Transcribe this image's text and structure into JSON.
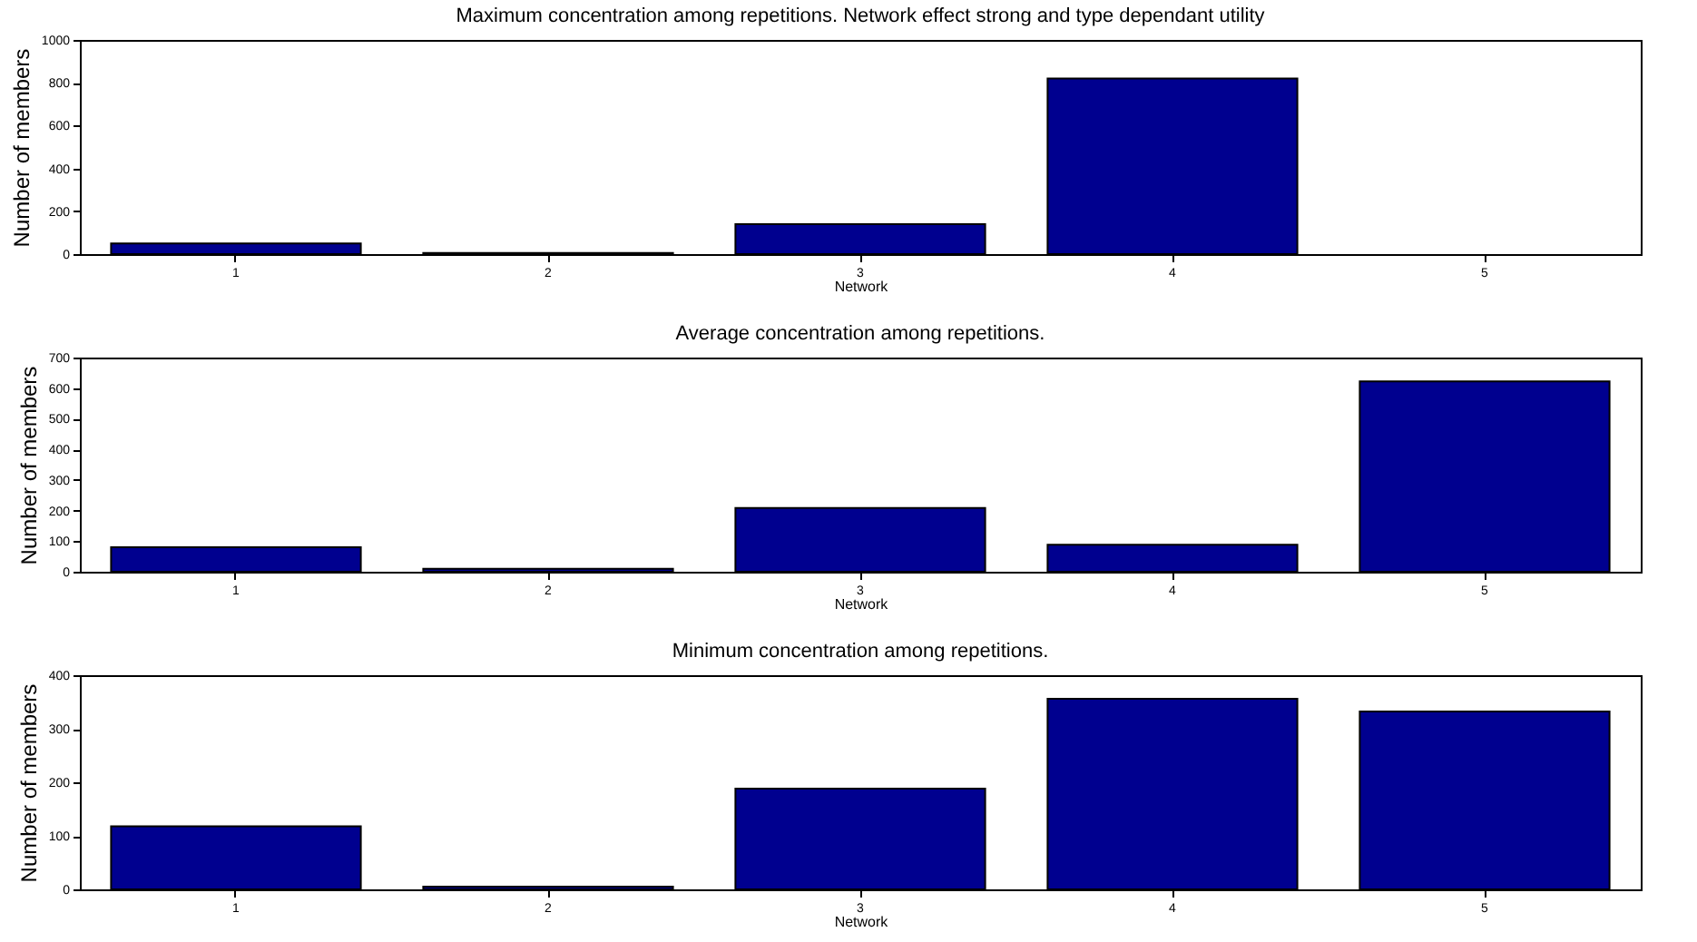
{
  "chart_data": [
    {
      "type": "bar",
      "title": "Maximum concentration among repetitions. Network effect strong and type dependant utility",
      "xlabel": "Network",
      "ylabel": "Number of members",
      "categories": [
        "1",
        "2",
        "3",
        "4",
        "5"
      ],
      "values": [
        50,
        5,
        140,
        820,
        null
      ],
      "color": "#00008f",
      "ylim": [
        0,
        1000
      ],
      "yticks": [
        0,
        200,
        400,
        600,
        800,
        1000
      ],
      "grid": false
    },
    {
      "type": "bar",
      "title": "Average concentration among repetitions.",
      "xlabel": "Network",
      "ylabel": "Number of members",
      "categories": [
        "1",
        "2",
        "3",
        "4",
        "5"
      ],
      "values": [
        80,
        10,
        208,
        88,
        622
      ],
      "color": "#00008f",
      "ylim": [
        0,
        700
      ],
      "yticks": [
        0,
        100,
        200,
        300,
        400,
        500,
        600,
        700
      ],
      "grid": false
    },
    {
      "type": "bar",
      "title": "Minimum concentration among repetitions.",
      "xlabel": "Network",
      "ylabel": "Number of members",
      "categories": [
        "1",
        "2",
        "3",
        "4",
        "5"
      ],
      "values": [
        118,
        5,
        188,
        356,
        332
      ],
      "color": "#00008f",
      "ylim": [
        0,
        400
      ],
      "yticks": [
        0,
        100,
        200,
        300,
        400
      ],
      "grid": false
    }
  ]
}
